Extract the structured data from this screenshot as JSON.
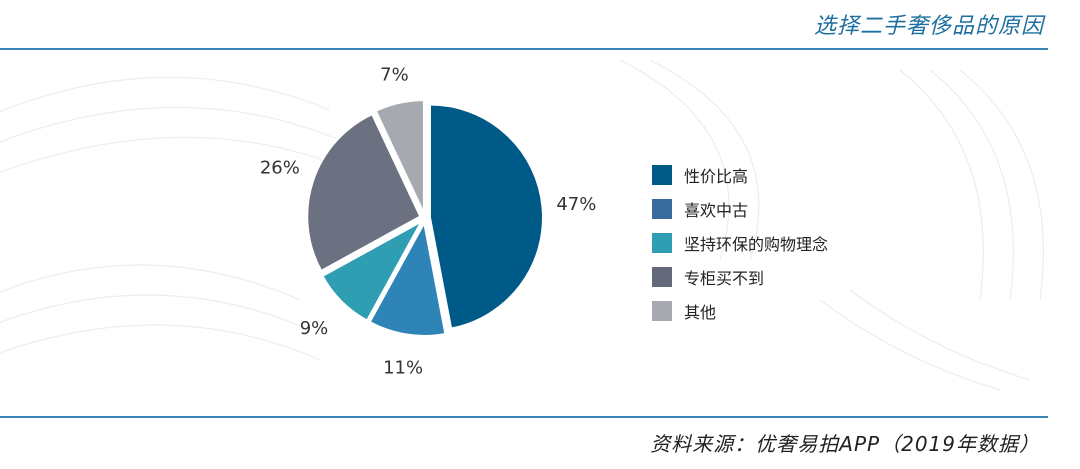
{
  "header": {
    "title": "选择二手奢侈品的原因"
  },
  "footer": {
    "source": "资料来源：优奢易拍APP（2019年数据）"
  },
  "chart_data": {
    "type": "pie",
    "title": "选择二手奢侈品的原因",
    "legend_position": "right",
    "slices": [
      {
        "label": "性价比高",
        "value": 47,
        "display": "47%",
        "color": "#005a87"
      },
      {
        "label": "喜欢中古",
        "value": 11,
        "display": "11%",
        "color": "#2e84b6"
      },
      {
        "label": "坚持环保的购物理念",
        "value": 9,
        "display": "9%",
        "color": "#2f9db2"
      },
      {
        "label": "专柜买不到",
        "value": 26,
        "display": "26%",
        "color": "#6b7180"
      },
      {
        "label": "其他",
        "value": 7,
        "display": "7%",
        "color": "#a7a9b1"
      }
    ],
    "legend": [
      {
        "label": "性价比高",
        "color": "#005a87"
      },
      {
        "label": "喜欢中古",
        "color": "#3a6b9e"
      },
      {
        "label": "坚持环保的购物理念",
        "color": "#2f9db2"
      },
      {
        "label": "专柜买不到",
        "color": "#636978"
      },
      {
        "label": "其他",
        "color": "#a7a9b1"
      }
    ]
  }
}
